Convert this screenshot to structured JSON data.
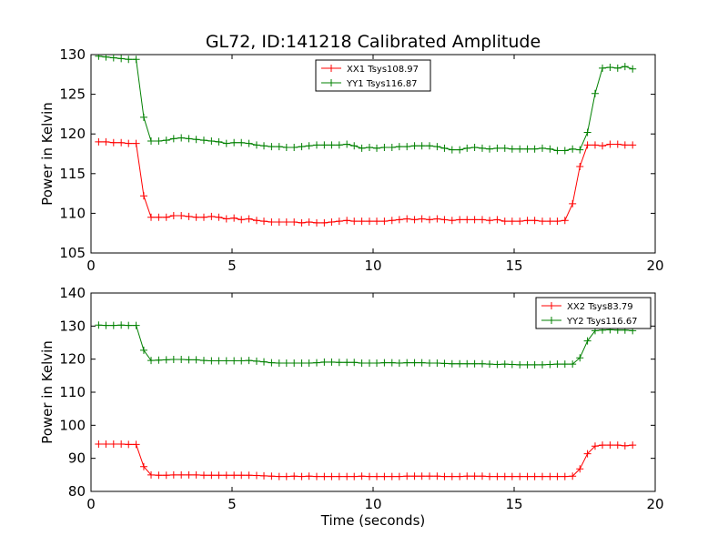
{
  "title": "GL72, ID:141218 Calibrated Amplitude",
  "chart_data": [
    {
      "type": "line",
      "ylabel": "Power in Kelvin",
      "xlabel": "",
      "xlim": [
        0,
        20
      ],
      "ylim": [
        105,
        130
      ],
      "xticks": [
        0,
        5,
        10,
        15,
        20
      ],
      "yticks": [
        105,
        110,
        115,
        120,
        125,
        130
      ],
      "legend": "top-center",
      "grid": false,
      "series": [
        {
          "name": "XX1 Tsys108.97",
          "color": "#ff0000",
          "x": [
            0.27,
            0.53,
            0.8,
            1.07,
            1.33,
            1.6,
            1.87,
            2.13,
            2.4,
            2.67,
            2.93,
            3.2,
            3.47,
            3.73,
            4.0,
            4.27,
            4.53,
            4.8,
            5.07,
            5.33,
            5.6,
            5.87,
            6.13,
            6.4,
            6.67,
            6.93,
            7.2,
            7.47,
            7.73,
            8.0,
            8.27,
            8.53,
            8.8,
            9.07,
            9.33,
            9.6,
            9.87,
            10.13,
            10.4,
            10.67,
            10.93,
            11.2,
            11.47,
            11.73,
            12.0,
            12.27,
            12.53,
            12.8,
            13.07,
            13.33,
            13.6,
            13.87,
            14.13,
            14.4,
            14.67,
            14.93,
            15.2,
            15.47,
            15.73,
            16.0,
            16.27,
            16.53,
            16.8,
            17.07,
            17.33,
            17.6,
            17.87,
            18.13,
            18.4,
            18.67,
            18.93,
            19.2
          ],
          "y": [
            119.0,
            119.0,
            118.9,
            118.9,
            118.8,
            118.8,
            112.2,
            109.5,
            109.5,
            109.5,
            109.7,
            109.7,
            109.6,
            109.5,
            109.5,
            109.6,
            109.5,
            109.3,
            109.4,
            109.2,
            109.3,
            109.1,
            109.0,
            108.9,
            108.9,
            108.9,
            108.9,
            108.8,
            108.9,
            108.8,
            108.8,
            108.9,
            109.0,
            109.1,
            109.0,
            109.0,
            109.0,
            109.0,
            109.0,
            109.1,
            109.2,
            109.3,
            109.2,
            109.3,
            109.2,
            109.3,
            109.2,
            109.1,
            109.2,
            109.2,
            109.2,
            109.2,
            109.1,
            109.2,
            109.0,
            109.0,
            109.0,
            109.1,
            109.1,
            109.0,
            109.0,
            109.0,
            109.1,
            111.2,
            115.9,
            118.6,
            118.6,
            118.5,
            118.7,
            118.7,
            118.6,
            118.6
          ]
        },
        {
          "name": "YY1 Tsys116.87",
          "color": "#008000",
          "x": [
            0.27,
            0.53,
            0.8,
            1.07,
            1.33,
            1.6,
            1.87,
            2.13,
            2.4,
            2.67,
            2.93,
            3.2,
            3.47,
            3.73,
            4.0,
            4.27,
            4.53,
            4.8,
            5.07,
            5.33,
            5.6,
            5.87,
            6.13,
            6.4,
            6.67,
            6.93,
            7.2,
            7.47,
            7.73,
            8.0,
            8.27,
            8.53,
            8.8,
            9.07,
            9.33,
            9.6,
            9.87,
            10.13,
            10.4,
            10.67,
            10.93,
            11.2,
            11.47,
            11.73,
            12.0,
            12.27,
            12.53,
            12.8,
            13.07,
            13.33,
            13.6,
            13.87,
            14.13,
            14.4,
            14.67,
            14.93,
            15.2,
            15.47,
            15.73,
            16.0,
            16.27,
            16.53,
            16.8,
            17.07,
            17.33,
            17.6,
            17.87,
            18.13,
            18.4,
            18.67,
            18.93,
            19.2
          ],
          "y": [
            129.8,
            129.7,
            129.6,
            129.5,
            129.4,
            129.4,
            122.1,
            119.1,
            119.1,
            119.2,
            119.4,
            119.5,
            119.4,
            119.3,
            119.2,
            119.1,
            119.0,
            118.8,
            118.9,
            118.9,
            118.8,
            118.6,
            118.5,
            118.4,
            118.4,
            118.3,
            118.3,
            118.4,
            118.5,
            118.6,
            118.6,
            118.6,
            118.6,
            118.7,
            118.5,
            118.2,
            118.3,
            118.2,
            118.3,
            118.3,
            118.4,
            118.4,
            118.5,
            118.5,
            118.5,
            118.4,
            118.2,
            118.0,
            118.0,
            118.2,
            118.3,
            118.2,
            118.1,
            118.2,
            118.2,
            118.1,
            118.1,
            118.1,
            118.1,
            118.2,
            118.1,
            117.9,
            117.9,
            118.1,
            118.0,
            120.2,
            125.1,
            128.3,
            128.4,
            128.3,
            128.5,
            128.2
          ]
        }
      ]
    },
    {
      "type": "line",
      "ylabel": "Power in Kelvin",
      "xlabel": "Time (seconds)",
      "xlim": [
        0,
        20
      ],
      "ylim": [
        80,
        140
      ],
      "xticks": [
        0,
        5,
        10,
        15,
        20
      ],
      "yticks": [
        80,
        90,
        100,
        110,
        120,
        130,
        140
      ],
      "legend": "top-right",
      "grid": false,
      "series": [
        {
          "name": "XX2 Tsys83.79",
          "color": "#ff0000",
          "x": [
            0.27,
            0.53,
            0.8,
            1.07,
            1.33,
            1.6,
            1.87,
            2.13,
            2.4,
            2.67,
            2.93,
            3.2,
            3.47,
            3.73,
            4.0,
            4.27,
            4.53,
            4.8,
            5.07,
            5.33,
            5.6,
            5.87,
            6.13,
            6.4,
            6.67,
            6.93,
            7.2,
            7.47,
            7.73,
            8.0,
            8.27,
            8.53,
            8.8,
            9.07,
            9.33,
            9.6,
            9.87,
            10.13,
            10.4,
            10.67,
            10.93,
            11.2,
            11.47,
            11.73,
            12.0,
            12.27,
            12.53,
            12.8,
            13.07,
            13.33,
            13.6,
            13.87,
            14.13,
            14.4,
            14.67,
            14.93,
            15.2,
            15.47,
            15.73,
            16.0,
            16.27,
            16.53,
            16.8,
            17.07,
            17.33,
            17.6,
            17.87,
            18.13,
            18.4,
            18.67,
            18.93,
            19.2
          ],
          "y": [
            94.3,
            94.3,
            94.3,
            94.3,
            94.2,
            94.2,
            87.5,
            85.0,
            84.9,
            84.9,
            85.0,
            85.0,
            85.0,
            85.0,
            84.9,
            84.9,
            84.9,
            84.9,
            84.9,
            84.9,
            84.9,
            84.8,
            84.7,
            84.6,
            84.5,
            84.5,
            84.6,
            84.5,
            84.6,
            84.5,
            84.5,
            84.5,
            84.5,
            84.5,
            84.5,
            84.6,
            84.5,
            84.5,
            84.5,
            84.5,
            84.5,
            84.6,
            84.6,
            84.6,
            84.6,
            84.6,
            84.5,
            84.5,
            84.5,
            84.6,
            84.6,
            84.6,
            84.5,
            84.5,
            84.5,
            84.5,
            84.5,
            84.5,
            84.5,
            84.5,
            84.5,
            84.5,
            84.5,
            84.6,
            86.8,
            91.4,
            93.7,
            94.0,
            94.0,
            94.0,
            93.8,
            94.0
          ]
        },
        {
          "name": "YY2 Tsys116.67",
          "color": "#008000",
          "x": [
            0.27,
            0.53,
            0.8,
            1.07,
            1.33,
            1.6,
            1.87,
            2.13,
            2.4,
            2.67,
            2.93,
            3.2,
            3.47,
            3.73,
            4.0,
            4.27,
            4.53,
            4.8,
            5.07,
            5.33,
            5.6,
            5.87,
            6.13,
            6.4,
            6.67,
            6.93,
            7.2,
            7.47,
            7.73,
            8.0,
            8.27,
            8.53,
            8.8,
            9.07,
            9.33,
            9.6,
            9.87,
            10.13,
            10.4,
            10.67,
            10.93,
            11.2,
            11.47,
            11.73,
            12.0,
            12.27,
            12.53,
            12.8,
            13.07,
            13.33,
            13.6,
            13.87,
            14.13,
            14.4,
            14.67,
            14.93,
            15.2,
            15.47,
            15.73,
            16.0,
            16.27,
            16.53,
            16.8,
            17.07,
            17.33,
            17.6,
            17.87,
            18.13,
            18.4,
            18.67,
            18.93,
            19.2
          ],
          "y": [
            130.3,
            130.2,
            130.2,
            130.3,
            130.2,
            130.2,
            122.7,
            119.6,
            119.7,
            119.8,
            119.9,
            119.9,
            119.8,
            119.8,
            119.6,
            119.5,
            119.5,
            119.5,
            119.5,
            119.5,
            119.6,
            119.4,
            119.2,
            118.9,
            118.8,
            118.8,
            118.8,
            118.8,
            118.8,
            118.9,
            119.1,
            119.1,
            119.0,
            119.0,
            119.0,
            118.8,
            118.8,
            118.8,
            118.9,
            118.9,
            118.8,
            118.9,
            118.9,
            118.9,
            118.8,
            118.8,
            118.7,
            118.6,
            118.6,
            118.6,
            118.6,
            118.6,
            118.5,
            118.4,
            118.5,
            118.4,
            118.3,
            118.3,
            118.3,
            118.3,
            118.4,
            118.5,
            118.5,
            118.5,
            120.4,
            125.5,
            128.6,
            128.8,
            128.9,
            128.8,
            128.8,
            128.6
          ]
        }
      ]
    }
  ]
}
